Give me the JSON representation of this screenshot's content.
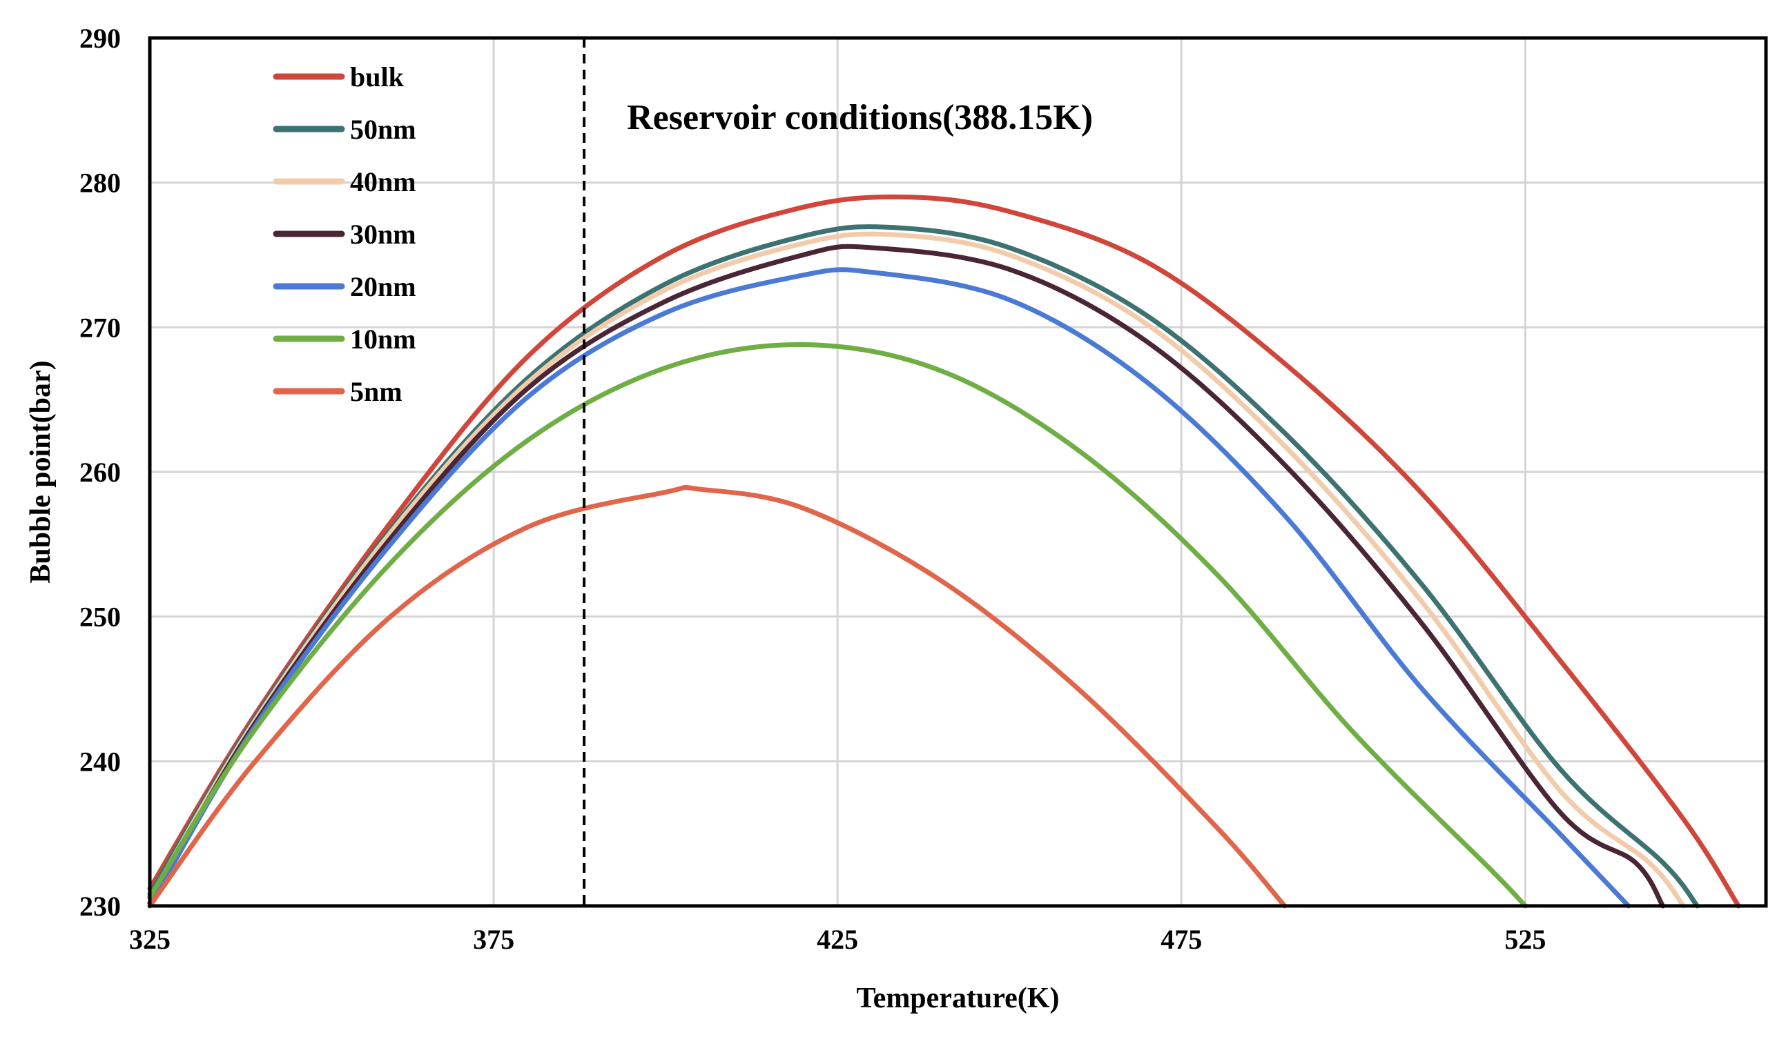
{
  "chart_data": {
    "type": "line",
    "xlabel": "Temperature(K)",
    "ylabel": "Bubble point(bar)",
    "xlim": [
      325,
      560
    ],
    "ylim": [
      230,
      290
    ],
    "x_ticks": [
      "325",
      "375",
      "425",
      "475",
      "525"
    ],
    "y_ticks": [
      "230",
      "240",
      "250",
      "260",
      "270",
      "280",
      "290"
    ],
    "grid": true,
    "legend_position": "top-left",
    "annotation": {
      "text": "Reservoir conditions(388.15K)",
      "x": 388.15
    },
    "series": [
      {
        "name": "bulk",
        "color": "#d0463a",
        "x": [
          325,
          340,
          360,
          380,
          400,
          420,
          435,
          450,
          470,
          490,
          510,
          530,
          548,
          556
        ],
        "y": [
          231.2,
          243.0,
          256.5,
          268.0,
          275.0,
          278.3,
          279.0,
          278.0,
          274.5,
          267.5,
          258.5,
          247.0,
          236.0,
          230.0
        ]
      },
      {
        "name": "50nm",
        "color": "#3d7272",
        "x": [
          325,
          340,
          360,
          380,
          400,
          420,
          433,
          450,
          470,
          490,
          510,
          530,
          545,
          550
        ],
        "y": [
          230.8,
          242.8,
          256.0,
          266.5,
          273.0,
          276.3,
          276.9,
          275.5,
          270.8,
          262.7,
          252.2,
          239.5,
          233.0,
          230.0
        ]
      },
      {
        "name": "40nm",
        "color": "#f2ccaa",
        "x": [
          325,
          340,
          360,
          380,
          400,
          420,
          433,
          450,
          470,
          490,
          510,
          530,
          543,
          548
        ],
        "y": [
          230.5,
          242.6,
          255.8,
          266.2,
          272.6,
          275.8,
          276.4,
          275.0,
          270.2,
          261.8,
          251.0,
          238.0,
          233.0,
          230.0
        ]
      },
      {
        "name": "30nm",
        "color": "#4a2535",
        "x": [
          325,
          340,
          360,
          380,
          400,
          420,
          430,
          450,
          470,
          490,
          510,
          530,
          541,
          545
        ],
        "y": [
          230.2,
          242.4,
          255.4,
          265.8,
          271.8,
          275.0,
          275.5,
          274.0,
          269.0,
          260.5,
          249.5,
          236.5,
          233.0,
          230.0
        ]
      },
      {
        "name": "20nm",
        "color": "#4a7ad6",
        "x": [
          325,
          340,
          360,
          380,
          400,
          420,
          430,
          450,
          470,
          490,
          510,
          530,
          535,
          540
        ],
        "y": [
          230.0,
          242.2,
          255.0,
          265.2,
          271.0,
          273.6,
          273.8,
          271.9,
          266.2,
          257.0,
          245.0,
          235.0,
          232.5,
          230.0
        ]
      },
      {
        "name": "10nm",
        "color": "#6fae45",
        "x": [
          325,
          340,
          360,
          380,
          400,
          420,
          440,
          460,
          480,
          500,
          520,
          525
        ],
        "y": [
          230.6,
          242.0,
          253.7,
          262.2,
          267.2,
          268.8,
          267.0,
          261.5,
          253.0,
          242.0,
          232.5,
          230.0
        ]
      },
      {
        "name": "5nm",
        "color": "#e0654a",
        "x": [
          325,
          340,
          360,
          380,
          400,
          405,
          420,
          440,
          460,
          480,
          490
        ],
        "y": [
          230.0,
          239.8,
          250.0,
          256.2,
          258.6,
          258.8,
          257.5,
          252.5,
          245.0,
          235.5,
          230.0
        ]
      }
    ]
  }
}
